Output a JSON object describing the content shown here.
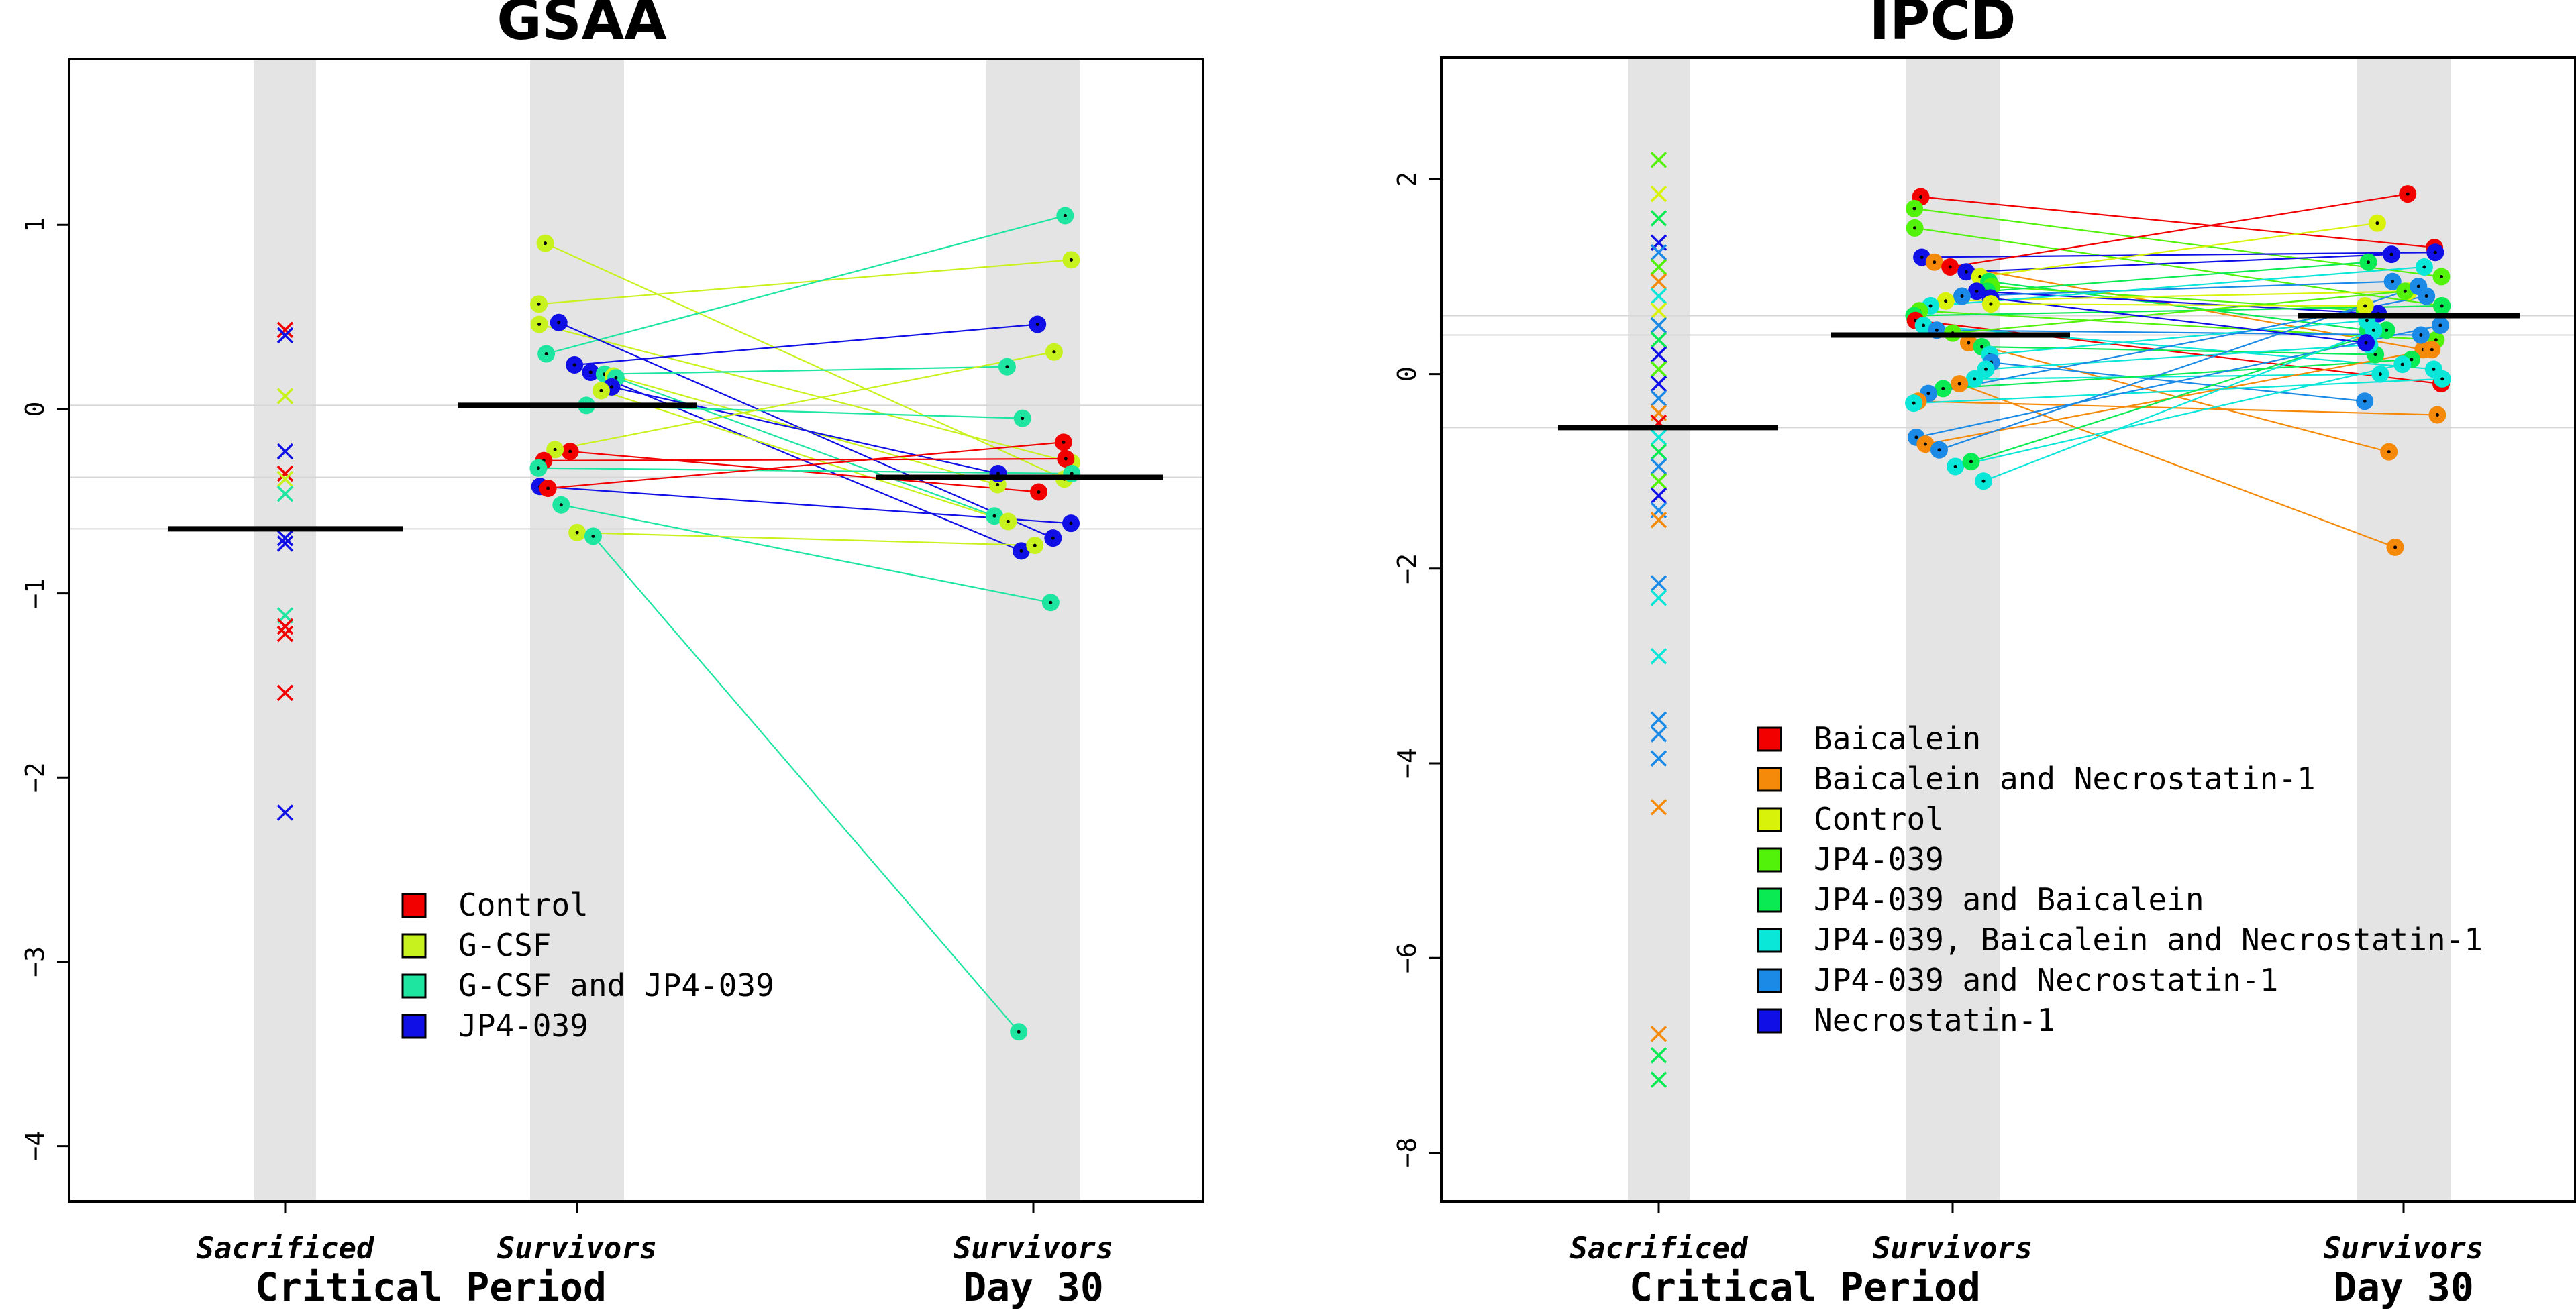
{
  "chart_data": [
    {
      "type": "scatter",
      "title": "GSAA",
      "xlabel": "Critical Period",
      "ylim": [
        -4.3,
        1.9
      ],
      "yticks": [
        1,
        0,
        -1,
        -2,
        -3,
        -4
      ],
      "ytick_labels": [
        "1",
        "0",
        "−1",
        "−2",
        "−3",
        "−4"
      ],
      "categories": [
        {
          "label": "Sacrificed",
          "axis_label": ""
        },
        {
          "label": "Survivors",
          "axis_label": ""
        },
        {
          "label": "Survivors",
          "axis_label": "Day 30"
        }
      ],
      "means": [
        -0.65,
        0.02,
        -0.37
      ],
      "legend": [
        {
          "name": "Control",
          "color": "#f20000"
        },
        {
          "name": "G-CSF",
          "color": "#c8f21e"
        },
        {
          "name": "G-CSF and JP4-039",
          "color": "#1ee6a0"
        },
        {
          "name": "JP4-039",
          "color": "#1010e6"
        }
      ],
      "sacrificed": [
        {
          "group": "Control",
          "y": 0.43
        },
        {
          "group": "JP4-039",
          "y": 0.4
        },
        {
          "group": "G-CSF",
          "y": 0.07
        },
        {
          "group": "JP4-039",
          "y": -0.23
        },
        {
          "group": "Control",
          "y": -0.35
        },
        {
          "group": "G-CSF",
          "y": -0.38
        },
        {
          "group": "G-CSF and JP4-039",
          "y": -0.46
        },
        {
          "group": "JP4-039",
          "y": -0.7
        },
        {
          "group": "JP4-039",
          "y": -0.73
        },
        {
          "group": "G-CSF and JP4-039",
          "y": -1.12
        },
        {
          "group": "Control",
          "y": -1.18
        },
        {
          "group": "Control",
          "y": -1.22
        },
        {
          "group": "Control",
          "y": -1.54
        },
        {
          "group": "JP4-039",
          "y": -2.19
        }
      ],
      "pairs": [
        {
          "group": "G-CSF",
          "y1": 0.9,
          "y2": -0.38
        },
        {
          "group": "G-CSF",
          "y1": 0.57,
          "y2": 0.81
        },
        {
          "group": "G-CSF",
          "y1": 0.46,
          "y2": -0.29
        },
        {
          "group": "G-CSF and JP4-039",
          "y1": 0.3,
          "y2": 1.05
        },
        {
          "group": "JP4-039",
          "y1": 0.47,
          "y2": -0.7
        },
        {
          "group": "JP4-039",
          "y1": 0.24,
          "y2": 0.46
        },
        {
          "group": "JP4-039",
          "y1": 0.2,
          "y2": -0.77
        },
        {
          "group": "G-CSF and JP4-039",
          "y1": 0.19,
          "y2": 0.23
        },
        {
          "group": "G-CSF",
          "y1": 0.18,
          "y2": -0.41
        },
        {
          "group": "G-CSF and JP4-039",
          "y1": 0.17,
          "y2": -0.58
        },
        {
          "group": "JP4-039",
          "y1": 0.12,
          "y2": -0.35
        },
        {
          "group": "G-CSF",
          "y1": 0.1,
          "y2": -0.61
        },
        {
          "group": "G-CSF and JP4-039",
          "y1": 0.02,
          "y2": -0.05
        },
        {
          "group": "Control",
          "y1": -0.23,
          "y2": -0.45
        },
        {
          "group": "G-CSF",
          "y1": -0.22,
          "y2": 0.31
        },
        {
          "group": "Control",
          "y1": -0.28,
          "y2": -0.27
        },
        {
          "group": "G-CSF and JP4-039",
          "y1": -0.32,
          "y2": -0.35
        },
        {
          "group": "JP4-039",
          "y1": -0.42,
          "y2": -0.62
        },
        {
          "group": "Control",
          "y1": -0.43,
          "y2": -0.18
        },
        {
          "group": "G-CSF and JP4-039",
          "y1": -0.52,
          "y2": -1.05
        },
        {
          "group": "G-CSF",
          "y1": -0.67,
          "y2": -0.74
        },
        {
          "group": "G-CSF and JP4-039",
          "y1": -0.69,
          "y2": -3.38
        }
      ]
    },
    {
      "type": "scatter",
      "title": "IPCD",
      "xlabel": "Critical Period",
      "ylim": [
        -8.5,
        3.25
      ],
      "yticks": [
        2,
        0,
        -2,
        -4,
        -6,
        -8
      ],
      "ytick_labels": [
        "2",
        "0",
        "−2",
        "−4",
        "−6",
        "−8"
      ],
      "categories": [
        {
          "label": "Sacrificed",
          "axis_label": ""
        },
        {
          "label": "Survivors",
          "axis_label": ""
        },
        {
          "label": "Survivors",
          "axis_label": "Day 30"
        }
      ],
      "means": [
        -0.55,
        0.4,
        0.6
      ],
      "legend": [
        {
          "name": "Baicalein",
          "color": "#f20000"
        },
        {
          "name": "Baicalein and Necrostatin-1",
          "color": "#f58a0a"
        },
        {
          "name": "Control",
          "color": "#d8f20a"
        },
        {
          "name": "JP4-039",
          "color": "#52f20a"
        },
        {
          "name": "JP4-039 and Baicalein",
          "color": "#0aea52"
        },
        {
          "name": "JP4-039, Baicalein and Necrostatin-1",
          "color": "#0ae6d8"
        },
        {
          "name": "JP4-039 and Necrostatin-1",
          "color": "#1a8ae6"
        },
        {
          "name": "Necrostatin-1",
          "color": "#1010e6"
        }
      ],
      "sacrificed": [
        {
          "group": "JP4-039",
          "y": 2.2
        },
        {
          "group": "Control",
          "y": 1.85
        },
        {
          "group": "JP4-039 and Baicalein",
          "y": 1.6
        },
        {
          "group": "Necrostatin-1",
          "y": 1.35
        },
        {
          "group": "JP4-039 and Necrostatin-1",
          "y": 1.25
        },
        {
          "group": "JP4-039",
          "y": 1.1
        },
        {
          "group": "Baicalein and Necrostatin-1",
          "y": 0.95
        },
        {
          "group": "JP4-039, Baicalein and Necrostatin-1",
          "y": 0.8
        },
        {
          "group": "Control",
          "y": 0.65
        },
        {
          "group": "JP4-039 and Necrostatin-1",
          "y": 0.5
        },
        {
          "group": "JP4-039 and Baicalein",
          "y": 0.35
        },
        {
          "group": "Necrostatin-1",
          "y": 0.2
        },
        {
          "group": "JP4-039",
          "y": 0.05
        },
        {
          "group": "Necrostatin-1",
          "y": -0.1
        },
        {
          "group": "JP4-039 and Necrostatin-1",
          "y": -0.25
        },
        {
          "group": "Baicalein and Necrostatin-1",
          "y": -0.4
        },
        {
          "group": "Baicalein",
          "y": -0.5
        },
        {
          "group": "JP4-039, Baicalein and Necrostatin-1",
          "y": -0.65
        },
        {
          "group": "JP4-039 and Baicalein",
          "y": -0.8
        },
        {
          "group": "JP4-039 and Necrostatin-1",
          "y": -0.95
        },
        {
          "group": "JP4-039",
          "y": -1.1
        },
        {
          "group": "Necrostatin-1",
          "y": -1.25
        },
        {
          "group": "JP4-039 and Necrostatin-1",
          "y": -1.4
        },
        {
          "group": "Baicalein and Necrostatin-1",
          "y": -1.5
        },
        {
          "group": "JP4-039 and Necrostatin-1",
          "y": -2.15
        },
        {
          "group": "JP4-039, Baicalein and Necrostatin-1",
          "y": -2.3
        },
        {
          "group": "JP4-039, Baicalein and Necrostatin-1",
          "y": -2.9
        },
        {
          "group": "JP4-039 and Necrostatin-1",
          "y": -3.55
        },
        {
          "group": "JP4-039 and Necrostatin-1",
          "y": -3.7
        },
        {
          "group": "JP4-039 and Necrostatin-1",
          "y": -3.95
        },
        {
          "group": "Baicalein and Necrostatin-1",
          "y": -4.45
        },
        {
          "group": "Baicalein and Necrostatin-1",
          "y": -6.78
        },
        {
          "group": "JP4-039 and Baicalein",
          "y": -7.0
        },
        {
          "group": "JP4-039 and Baicalein",
          "y": -7.25
        }
      ],
      "pairs": [
        {
          "group": "Baicalein",
          "y1": 1.82,
          "y2": 1.3
        },
        {
          "group": "JP4-039",
          "y1": 1.7,
          "y2": 1.0
        },
        {
          "group": "JP4-039",
          "y1": 1.5,
          "y2": 0.7
        },
        {
          "group": "Necrostatin-1",
          "y1": 1.2,
          "y2": 1.25
        },
        {
          "group": "Baicalein and Necrostatin-1",
          "y1": 1.15,
          "y2": 0.25
        },
        {
          "group": "Baicalein",
          "y1": 1.1,
          "y2": 1.85
        },
        {
          "group": "Necrostatin-1",
          "y1": 1.05,
          "y2": 1.23
        },
        {
          "group": "Control",
          "y1": 1.0,
          "y2": 1.55
        },
        {
          "group": "JP4-039 and Baicalein",
          "y1": 0.95,
          "y2": 0.45
        },
        {
          "group": "JP4-039",
          "y1": 0.9,
          "y2": 0.65
        },
        {
          "group": "JP4-039 and Baicalein",
          "y1": 0.85,
          "y2": 1.15
        },
        {
          "group": "Necrostatin-1",
          "y1": 0.85,
          "y2": 0.62
        },
        {
          "group": "JP4-039 and Necrostatin-1",
          "y1": 0.8,
          "y2": 0.95
        },
        {
          "group": "Control",
          "y1": 0.75,
          "y2": 0.85
        },
        {
          "group": "JP4-039, Baicalein and Necrostatin-1",
          "y1": 0.7,
          "y2": 1.1
        },
        {
          "group": "JP4-039",
          "y1": 0.65,
          "y2": 0.35
        },
        {
          "group": "JP4-039 and Baicalein",
          "y1": 0.6,
          "y2": 0.7
        },
        {
          "group": "Baicalein",
          "y1": 0.55,
          "y2": -0.1
        },
        {
          "group": "JP4-039, Baicalein and Necrostatin-1",
          "y1": 0.5,
          "y2": 0.05
        },
        {
          "group": "JP4-039 and Necrostatin-1",
          "y1": 0.45,
          "y2": 0.4
        },
        {
          "group": "JP4-039",
          "y1": 0.42,
          "y2": 0.85
        },
        {
          "group": "Baicalein and Necrostatin-1",
          "y1": 0.32,
          "y2": -0.8
        },
        {
          "group": "JP4-039 and Baicalein",
          "y1": 0.28,
          "y2": 0.2
        },
        {
          "group": "JP4-039, Baicalein and Necrostatin-1",
          "y1": 0.2,
          "y2": 0.55
        },
        {
          "group": "JP4-039 and Necrostatin-1",
          "y1": 0.12,
          "y2": -0.28
        },
        {
          "group": "JP4-039, Baicalein and Necrostatin-1",
          "y1": 0.05,
          "y2": 0.3
        },
        {
          "group": "JP4-039, Baicalein and Necrostatin-1",
          "y1": -0.05,
          "y2": 0.0
        },
        {
          "group": "Baicalein and Necrostatin-1",
          "y1": -0.1,
          "y2": -1.78
        },
        {
          "group": "JP4-039 and Baicalein",
          "y1": -0.15,
          "y2": 0.15
        },
        {
          "group": "JP4-039 and Necrostatin-1",
          "y1": -0.2,
          "y2": 0.8
        },
        {
          "group": "Baicalein and Necrostatin-1",
          "y1": -0.28,
          "y2": -0.42
        },
        {
          "group": "JP4-039, Baicalein and Necrostatin-1",
          "y1": -0.3,
          "y2": -0.05
        },
        {
          "group": "JP4-039 and Necrostatin-1",
          "y1": -0.65,
          "y2": 0.5
        },
        {
          "group": "Baicalein and Necrostatin-1",
          "y1": -0.72,
          "y2": 0.25
        },
        {
          "group": "JP4-039 and Necrostatin-1",
          "y1": -0.78,
          "y2": 0.9
        },
        {
          "group": "JP4-039, Baicalein and Necrostatin-1",
          "y1": -0.95,
          "y2": 0.1
        },
        {
          "group": "JP4-039 and Baicalein",
          "y1": -0.9,
          "y2": 0.45
        },
        {
          "group": "JP4-039, Baicalein and Necrostatin-1",
          "y1": -1.1,
          "y2": 0.45
        },
        {
          "group": "Necrostatin-1",
          "y1": 0.78,
          "y2": 0.32
        },
        {
          "group": "Control",
          "y1": 0.72,
          "y2": 0.7
        }
      ]
    }
  ]
}
